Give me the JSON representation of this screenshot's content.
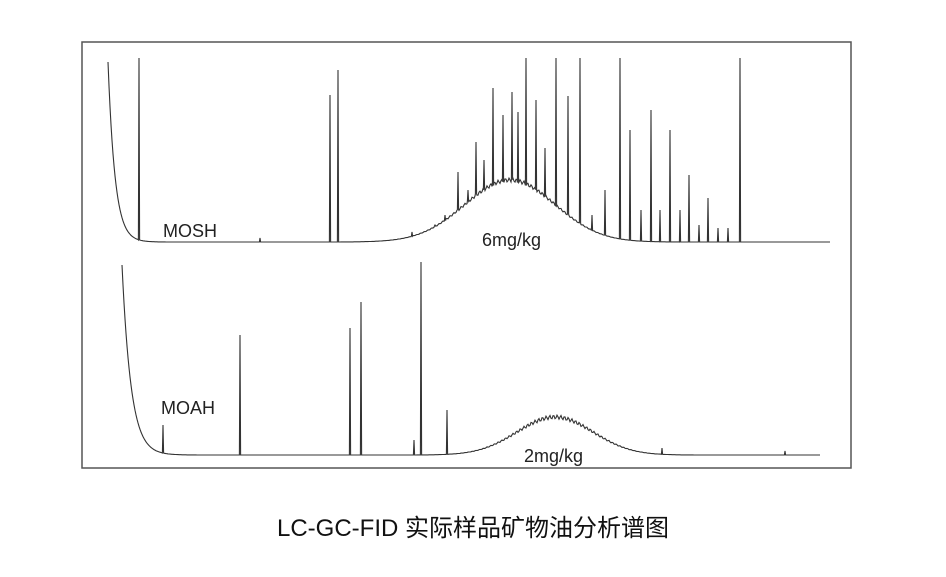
{
  "labels": {
    "mosh": "MOSH",
    "mosh_conc": "6mg/kg",
    "moah": "MOAH",
    "moah_conc": "2mg/kg"
  },
  "caption": "LC-GC-FID 实际样品矿物油分析谱图"
}
